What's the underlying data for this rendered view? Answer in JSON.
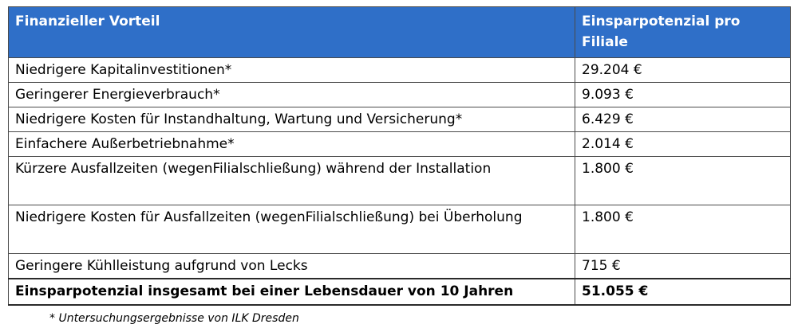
{
  "table": {
    "header": {
      "col1": "Finanzieller Vorteil",
      "col2": "Einsparpotenzial pro Filiale"
    },
    "rows": [
      {
        "label": "Niedrigere Kapitalinvestitionen*",
        "value": "29.204 €"
      },
      {
        "label": "Geringerer Energieverbrauch*",
        "value": "9.093 €"
      },
      {
        "label": "Niedrigere Kosten für Instandhaltung, Wartung und Versicherung*",
        "value": "6.429 €"
      },
      {
        "label": "Einfachere Außerbetriebnahme*",
        "value": "2.014 €"
      },
      {
        "label": "Kürzere Ausfallzeiten (wegenFilialschließung) während der Installation",
        "value": "1.800 €"
      },
      {
        "label": "Niedrigere Kosten für Ausfallzeiten (wegenFilialschließung) bei Überholung",
        "value": "1.800 €"
      },
      {
        "label": "Geringere Kühlleistung aufgrund von Lecks",
        "value": "715 €"
      }
    ],
    "total": {
      "label": "Einsparpotenzial insgesamt bei einer Lebensdauer von 10 Jahren",
      "value": "51.055 €"
    },
    "header_color": "#2f6fc8"
  },
  "footnote": "* Untersuchungsergebnisse von ILK Dresden"
}
